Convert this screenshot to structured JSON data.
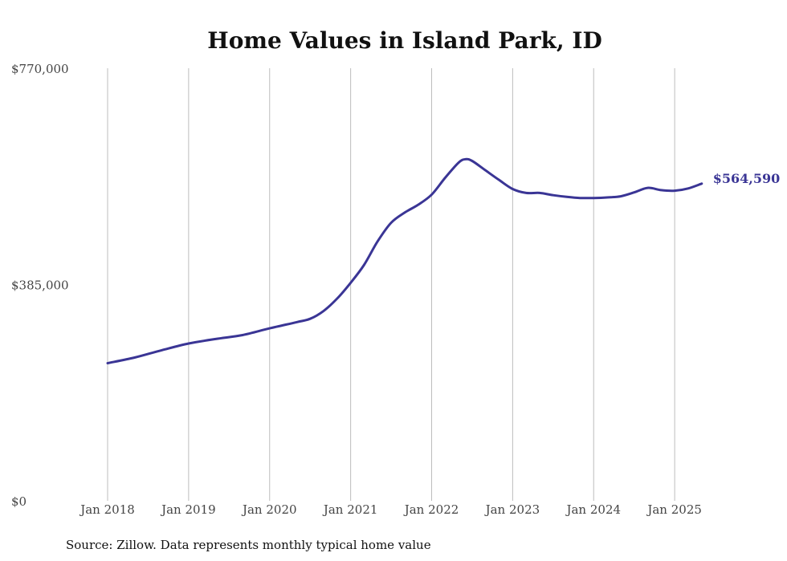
{
  "chart_data": {
    "type": "line",
    "title": "Home Values in Island Park, ID",
    "xlabel": "",
    "ylabel": "",
    "ylim": [
      0,
      770000
    ],
    "grid": "vertical",
    "y_ticks": [
      "$0",
      "$385,000",
      "$770,000"
    ],
    "x_ticks": [
      "Jan 2018",
      "Jan 2019",
      "Jan 2020",
      "Jan 2021",
      "Jan 2022",
      "Jan 2023",
      "Jan 2024",
      "Jan 2025"
    ],
    "end_label": "$564,590",
    "series": [
      {
        "color": "#3a3595",
        "points": [
          [
            "2018-01",
            245000
          ],
          [
            "2018-05",
            255000
          ],
          [
            "2018-09",
            268000
          ],
          [
            "2019-01",
            280000
          ],
          [
            "2019-05",
            288000
          ],
          [
            "2019-09",
            295000
          ],
          [
            "2020-01",
            307000
          ],
          [
            "2020-05",
            318000
          ],
          [
            "2020-07",
            324000
          ],
          [
            "2020-09",
            338000
          ],
          [
            "2020-11",
            360000
          ],
          [
            "2021-01",
            388000
          ],
          [
            "2021-03",
            420000
          ],
          [
            "2021-05",
            462000
          ],
          [
            "2021-07",
            495000
          ],
          [
            "2021-09",
            513000
          ],
          [
            "2021-11",
            527000
          ],
          [
            "2022-01",
            545000
          ],
          [
            "2022-03",
            575000
          ],
          [
            "2022-05",
            602000
          ],
          [
            "2022-06",
            608000
          ],
          [
            "2022-07",
            605000
          ],
          [
            "2022-09",
            588000
          ],
          [
            "2022-11",
            571000
          ],
          [
            "2023-01",
            555000
          ],
          [
            "2023-03",
            548000
          ],
          [
            "2023-05",
            548000
          ],
          [
            "2023-07",
            544000
          ],
          [
            "2023-09",
            541000
          ],
          [
            "2023-11",
            539000
          ],
          [
            "2024-01",
            539000
          ],
          [
            "2024-03",
            540000
          ],
          [
            "2024-05",
            542000
          ],
          [
            "2024-07",
            549000
          ],
          [
            "2024-09",
            557000
          ],
          [
            "2024-11",
            553000
          ],
          [
            "2025-01",
            552000
          ],
          [
            "2025-03",
            556000
          ],
          [
            "2025-05",
            564590
          ]
        ]
      }
    ]
  },
  "footer": {
    "source": "Source: Zillow. Data represents monthly typical home value"
  }
}
